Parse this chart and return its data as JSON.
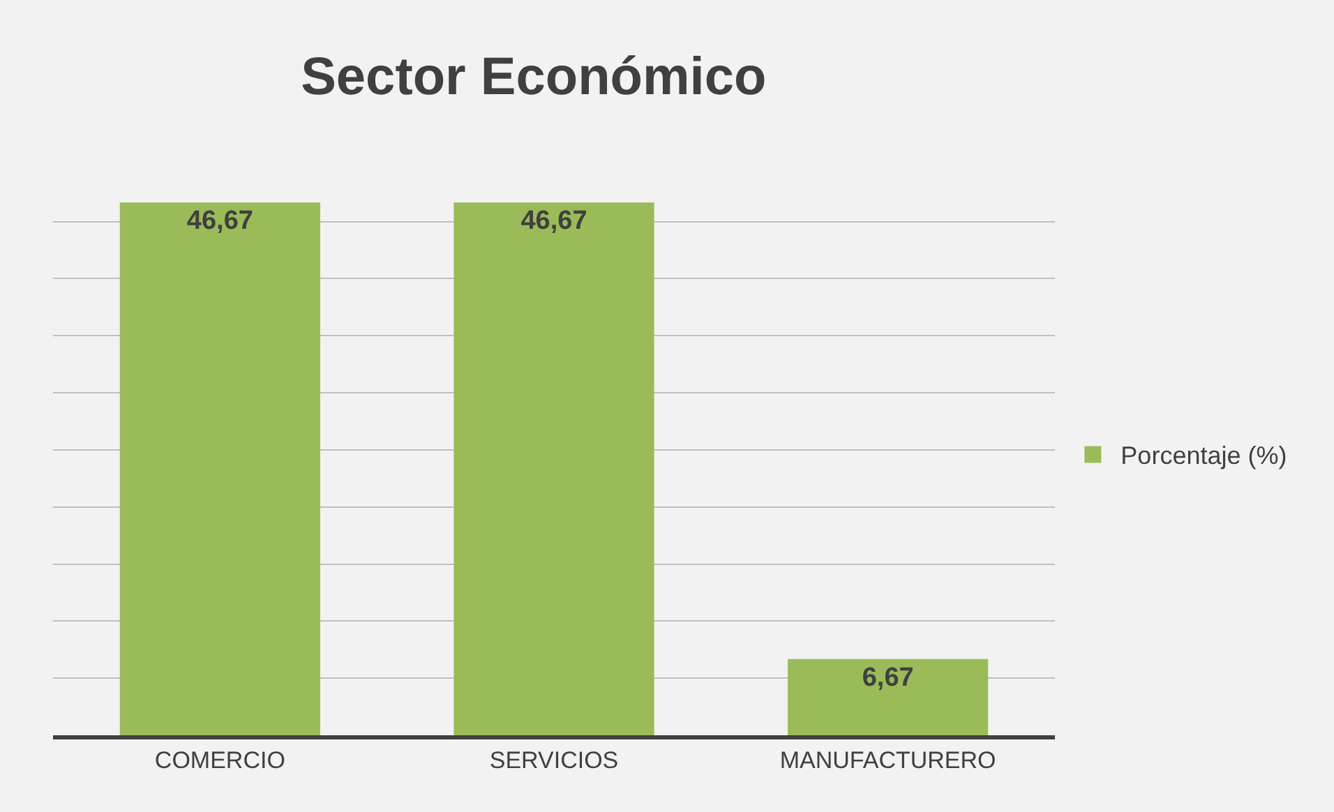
{
  "chart_data": {
    "type": "bar",
    "title": "Sector Económico",
    "categories": [
      "COMERCIO",
      "SERVICIOS",
      "MANUFACTURERO"
    ],
    "series": [
      {
        "name": "Porcentaje (%)",
        "color": "#9bbb59",
        "values": [
          46.67,
          46.67,
          6.67
        ],
        "value_labels": [
          "46,67",
          "46,67",
          "6,67"
        ]
      }
    ],
    "tick_labels": "x",
    "grid": "y",
    "legend": "right"
  }
}
